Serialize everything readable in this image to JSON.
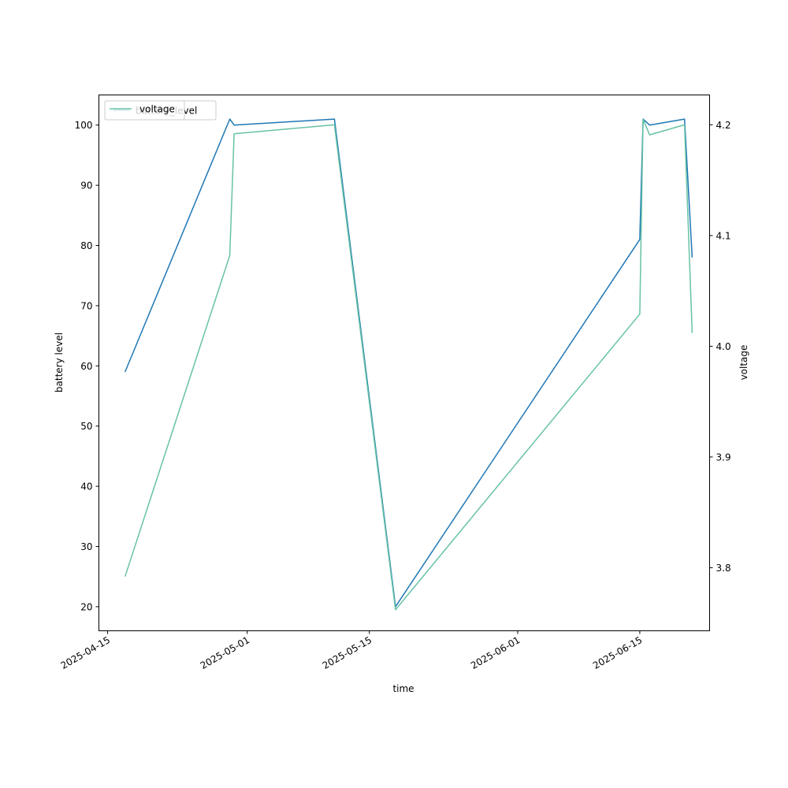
{
  "chart_data": {
    "type": "line",
    "xlabel": "time",
    "ylabel_left": "battery level",
    "ylabel_right": "voltage",
    "x_ticks": [
      "2025-04-15",
      "2025-05-01",
      "2025-05-15",
      "2025-06-01",
      "2025-06-15"
    ],
    "xlim": [
      "2025-04-14",
      "2025-06-23"
    ],
    "y_left_ticks": [
      "20",
      "30",
      "40",
      "50",
      "60",
      "70",
      "80",
      "90",
      "100"
    ],
    "y_left_lim": [
      16,
      105
    ],
    "y_right_ticks": [
      "3.8",
      "3.9",
      "4.0",
      "4.1",
      "4.2"
    ],
    "y_right_lim": [
      3.743,
      4.227
    ],
    "grid": false,
    "legend": {
      "placement": "top-left",
      "entries": [
        "battery_level",
        "voltage"
      ]
    },
    "series": [
      {
        "name": "battery_level",
        "axis": "left",
        "color": "#1f77b4",
        "x": [
          "2025-04-17T00:00",
          "2025-04-29T00:00",
          "2025-04-29T12:00",
          "2025-05-11T00:00",
          "2025-05-18T00:00",
          "2025-06-15T00:00",
          "2025-06-15T09:00",
          "2025-06-16T03:00",
          "2025-06-20T03:00",
          "2025-06-21T00:00"
        ],
        "values": [
          59,
          101,
          100,
          101,
          20,
          81,
          101,
          100,
          101,
          78
        ]
      },
      {
        "name": "voltage",
        "axis": "right",
        "color": "#66c2a5",
        "x": [
          "2025-04-17T00:00",
          "2025-04-29T00:00",
          "2025-04-29T12:00",
          "2025-05-11T00:00",
          "2025-05-18T00:00",
          "2025-06-15T00:00",
          "2025-06-15T09:00",
          "2025-06-16T03:00",
          "2025-06-20T03:00",
          "2025-06-21T00:00"
        ],
        "values": [
          3.792,
          4.082,
          4.192,
          4.2,
          3.762,
          4.029,
          4.205,
          4.191,
          4.2,
          4.012
        ]
      }
    ]
  }
}
